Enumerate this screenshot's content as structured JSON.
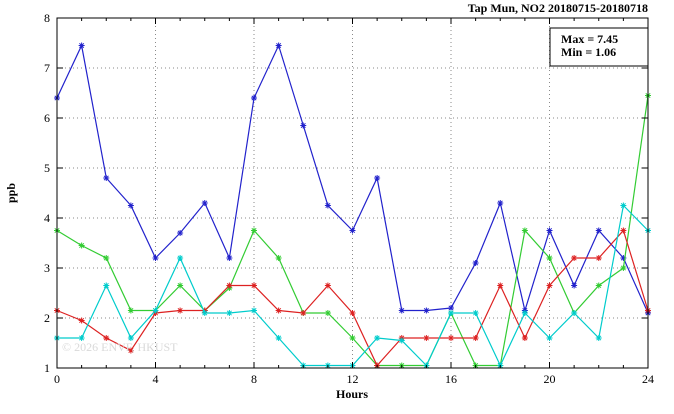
{
  "chart": {
    "title": "Tap Mun, NO2 20180715-20180718",
    "watermark": "© 2026 ENVF, HKUST"
  },
  "chart_data": {
    "type": "line",
    "title": "Tap Mun, NO2 20180715-20180718",
    "xlabel": "Hours",
    "ylabel": "ppb",
    "xlim": [
      0,
      24
    ],
    "ylim": [
      1,
      8
    ],
    "xticks": [
      0,
      4,
      8,
      12,
      16,
      20,
      24
    ],
    "yticks": [
      1,
      2,
      3,
      4,
      5,
      6,
      7,
      8
    ],
    "grid": true,
    "grid_style": "dotted",
    "legend_position": "top-right-inside",
    "annotations": [
      "Max = 7.45",
      "Min = 1.06"
    ],
    "marker": "asterisk",
    "x": [
      0,
      1,
      2,
      3,
      4,
      5,
      6,
      7,
      8,
      9,
      10,
      11,
      12,
      13,
      14,
      15,
      16,
      17,
      18,
      19,
      20,
      21,
      22,
      23,
      24
    ],
    "series": [
      {
        "name": "blue",
        "color": "#2222cc",
        "values": [
          6.4,
          7.45,
          4.8,
          4.25,
          3.2,
          3.7,
          4.3,
          3.2,
          6.4,
          7.45,
          5.85,
          4.25,
          3.75,
          4.8,
          2.15,
          2.15,
          2.2,
          3.1,
          4.3,
          2.15,
          3.75,
          2.65,
          3.75,
          3.2,
          2.1
        ]
      },
      {
        "name": "green",
        "color": "#33cc33",
        "values": [
          3.75,
          3.45,
          3.2,
          2.15,
          2.15,
          2.65,
          2.15,
          2.6,
          3.75,
          3.2,
          2.1,
          2.1,
          1.6,
          1.05,
          1.05,
          1.05,
          2.1,
          1.05,
          1.05,
          3.75,
          3.2,
          2.1,
          2.65,
          3.0,
          6.45
        ]
      },
      {
        "name": "red",
        "color": "#dd2222",
        "values": [
          2.15,
          1.95,
          1.6,
          1.35,
          2.1,
          2.15,
          2.15,
          2.65,
          2.65,
          2.15,
          2.1,
          2.65,
          2.1,
          1.05,
          1.6,
          1.6,
          1.6,
          1.6,
          2.65,
          1.6,
          2.65,
          3.2,
          3.2,
          3.75,
          2.15
        ]
      },
      {
        "name": "cyan",
        "color": "#00cccc",
        "values": [
          1.6,
          1.6,
          2.65,
          1.6,
          2.15,
          3.2,
          2.1,
          2.1,
          2.15,
          1.6,
          1.05,
          1.05,
          1.05,
          1.6,
          1.55,
          1.05,
          2.1,
          2.1,
          1.05,
          2.1,
          1.6,
          2.1,
          1.6,
          4.25,
          3.75
        ]
      }
    ]
  }
}
